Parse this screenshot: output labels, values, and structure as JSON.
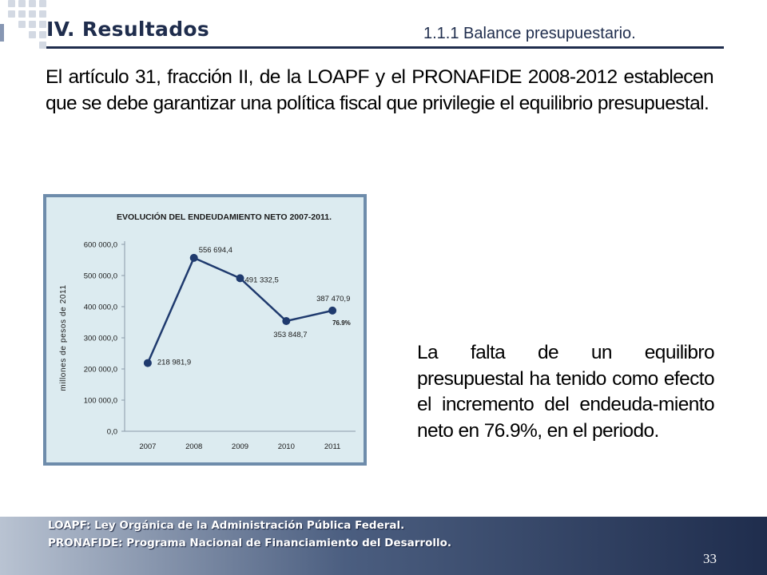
{
  "slide": {
    "title": "IV. Resultados",
    "subtitle": "1.1.1 Balance presupuestario.",
    "intro": "El artículo 31, fracción II, de la LOAPF y el PRONAFIDE 2008-2012 establecen que se debe garantizar una política fiscal que privilegie el equilibrio presupuestal.",
    "side_text": "La falta de un equilibro presupuestal ha tenido como efecto el incremento del endeuda-miento neto en 76.9%, en el periodo.",
    "footer_line1": "LOAPF: Ley Orgánica de la Administración Pública Federal.",
    "footer_line2": "PRONAFIDE: Programa Nacional de Financiamiento del Desarrollo.",
    "page_number": "33"
  },
  "colors": {
    "title": "#1f2d4d",
    "series_line": "#1f3a6e",
    "chart_background": "#dcebf0",
    "chart_frame": "#6e8cab"
  },
  "chart_data": {
    "type": "line",
    "title": "EVOLUCIÓN DEL ENDEUDAMIENTO NETO 2007-2011.",
    "xlabel": "",
    "ylabel": "millones de pesos de 2011",
    "categories": [
      "2007",
      "2008",
      "2009",
      "2010",
      "2011"
    ],
    "values": [
      218981.9,
      556694.4,
      491332.5,
      353848.7,
      387470.9
    ],
    "data_labels": [
      "218 981,9",
      "556 694,4",
      "491 332,5",
      "353 848,7",
      "387 470,9"
    ],
    "ylim": [
      0,
      600000
    ],
    "yticks": [
      0,
      100000,
      200000,
      300000,
      400000,
      500000,
      600000
    ],
    "ytick_labels": [
      "0,0",
      "100 000,0",
      "200 000,0",
      "300 000,0",
      "400 000,0",
      "500 000,0",
      "600 000,0"
    ],
    "annotation": "76.9%",
    "grid": false,
    "legend": "none"
  }
}
